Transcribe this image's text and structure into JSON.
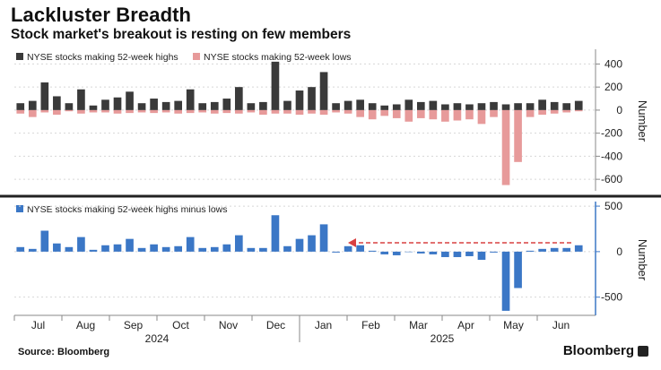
{
  "header": {
    "title": "Lackluster Breadth",
    "subtitle": "Stock market's breakout is resting on few members"
  },
  "footer": {
    "source": "Source: Bloomberg",
    "brand": "Bloomberg"
  },
  "colors": {
    "highs": "#3a3a3a",
    "lows": "#e79a9a",
    "net": "#3b77c6",
    "arrow": "#d94040",
    "divider": "#222222"
  },
  "chart_data": [
    {
      "type": "bar",
      "legend": [
        {
          "name": "NYSE stocks making 52-week highs",
          "color": "#3a3a3a"
        },
        {
          "name": "NYSE stocks making 52-week lows",
          "color": "#e79a9a"
        }
      ],
      "ylabel": "Number",
      "ylim": [
        -700,
        450
      ],
      "yticks": [
        400,
        200,
        0,
        -200,
        -400,
        -600
      ],
      "grid": true,
      "legend_position": "top-left",
      "series": [
        {
          "name": "NYSE stocks making 52-week highs",
          "values": [
            60,
            80,
            240,
            120,
            60,
            180,
            40,
            90,
            110,
            160,
            60,
            100,
            70,
            80,
            180,
            60,
            70,
            100,
            200,
            60,
            70,
            420,
            80,
            170,
            200,
            330,
            60,
            80,
            90,
            60,
            40,
            50,
            90,
            70,
            80,
            50,
            60,
            50,
            60,
            70,
            50,
            60,
            60,
            90,
            70,
            60,
            80
          ]
        },
        {
          "name": "NYSE stocks making 52-week lows",
          "values": [
            -30,
            -60,
            -20,
            -40,
            -10,
            -30,
            -20,
            -20,
            -30,
            -25,
            -20,
            -25,
            -20,
            -30,
            -25,
            -20,
            -30,
            -25,
            -30,
            -20,
            -40,
            -30,
            -30,
            -40,
            -30,
            -40,
            -20,
            -30,
            -60,
            -80,
            -50,
            -70,
            -100,
            -70,
            -80,
            -100,
            -90,
            -80,
            -120,
            -60,
            -650,
            -450,
            -60,
            -40,
            -30,
            -20,
            -10
          ]
        }
      ]
    },
    {
      "type": "bar",
      "legend": [
        {
          "name": "NYSE stocks making 52-week highs minus lows",
          "color": "#3b77c6"
        }
      ],
      "ylabel": "Number",
      "ylim": [
        -700,
        550
      ],
      "yticks": [
        500,
        0,
        -500
      ],
      "grid": true,
      "legend_position": "top-left",
      "x_month_labels": [
        "Jul",
        "Aug",
        "Sep",
        "Oct",
        "Nov",
        "Dec",
        "Jan",
        "Feb",
        "Mar",
        "Apr",
        "May",
        "Jun"
      ],
      "x_year_labels": [
        "2024",
        "2025"
      ],
      "annotation": "dashed red arrow at ~100 pointing left from Jun 2025 to late Jan 2025",
      "series": [
        {
          "name": "NYSE stocks making 52-week highs minus lows",
          "values": [
            50,
            30,
            230,
            90,
            50,
            160,
            20,
            70,
            80,
            140,
            40,
            80,
            50,
            60,
            160,
            40,
            50,
            80,
            180,
            40,
            40,
            400,
            60,
            140,
            180,
            300,
            -10,
            60,
            70,
            10,
            -30,
            -40,
            0,
            -20,
            -30,
            -60,
            -60,
            -50,
            -90,
            -10,
            -650,
            -400,
            10,
            30,
            40,
            40,
            70
          ]
        }
      ]
    }
  ]
}
